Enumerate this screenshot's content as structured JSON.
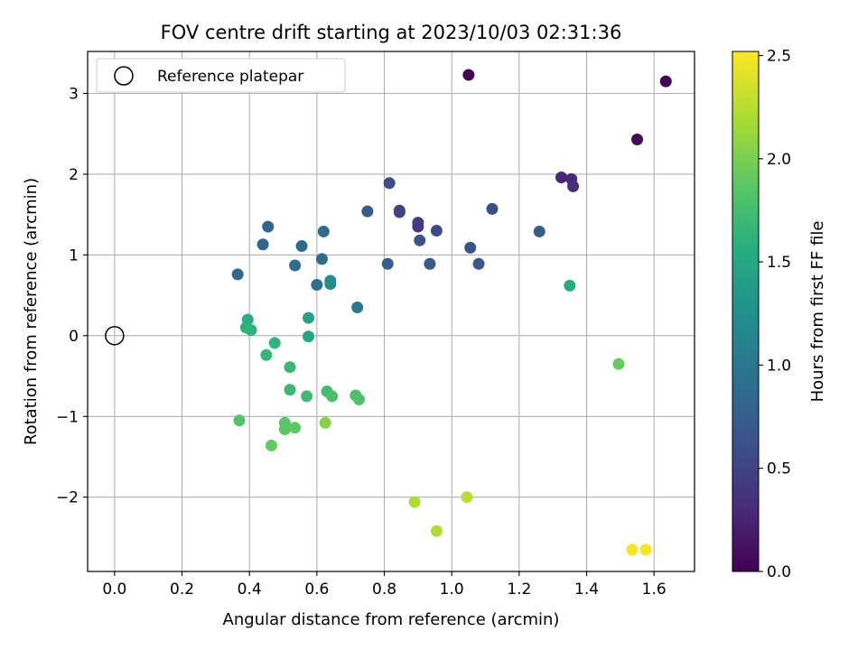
{
  "chart_data": {
    "type": "scatter",
    "title": "FOV centre drift starting at 2023/10/03 02:31:36",
    "xlabel": "Angular distance from reference (arcmin)",
    "ylabel": "Rotation from reference (arcmin)",
    "xlim": [
      -0.08,
      1.72
    ],
    "ylim": [
      -2.92,
      3.52
    ],
    "xticks": [
      0.0,
      0.2,
      0.4,
      0.6,
      0.8,
      1.0,
      1.2,
      1.4,
      1.6
    ],
    "xtick_labels": [
      "0.0",
      "0.2",
      "0.4",
      "0.6",
      "0.8",
      "1.0",
      "1.2",
      "1.4",
      "1.6"
    ],
    "yticks": [
      -2,
      -1,
      0,
      1,
      2,
      3
    ],
    "ytick_labels": [
      "−2",
      "−1",
      "0",
      "1",
      "2",
      "3"
    ],
    "grid": true,
    "legend": {
      "position": "top-left",
      "entries": [
        "Reference platepar"
      ]
    },
    "reference_point": {
      "x": 0.0,
      "y": 0.0
    },
    "colorbar": {
      "label": "Hours from first FF file",
      "range": [
        0.0,
        2.52
      ],
      "ticks": [
        0.0,
        0.5,
        1.0,
        1.5,
        2.0,
        2.5
      ],
      "tick_labels": [
        "0.0",
        "0.5",
        "1.0",
        "1.5",
        "2.0",
        "2.5"
      ],
      "colormap": "viridis"
    },
    "points": [
      {
        "x": 1.05,
        "y": 3.23,
        "c": 0.0
      },
      {
        "x": 1.635,
        "y": 3.15,
        "c": 0.02
      },
      {
        "x": 1.55,
        "y": 2.43,
        "c": 0.06
      },
      {
        "x": 1.325,
        "y": 1.96,
        "c": 0.28
      },
      {
        "x": 1.355,
        "y": 1.94,
        "c": 0.3
      },
      {
        "x": 1.36,
        "y": 1.85,
        "c": 0.34
      },
      {
        "x": 0.9,
        "y": 1.35,
        "c": 0.42
      },
      {
        "x": 0.9,
        "y": 1.4,
        "c": 0.45
      },
      {
        "x": 0.845,
        "y": 1.55,
        "c": 0.48
      },
      {
        "x": 0.845,
        "y": 1.53,
        "c": 0.52
      },
      {
        "x": 0.955,
        "y": 1.3,
        "c": 0.58
      },
      {
        "x": 0.815,
        "y": 1.89,
        "c": 0.6
      },
      {
        "x": 1.12,
        "y": 1.57,
        "c": 0.62
      },
      {
        "x": 1.055,
        "y": 1.09,
        "c": 0.64
      },
      {
        "x": 0.905,
        "y": 1.18,
        "c": 0.66
      },
      {
        "x": 1.08,
        "y": 0.89,
        "c": 0.68
      },
      {
        "x": 0.935,
        "y": 0.89,
        "c": 0.7
      },
      {
        "x": 0.75,
        "y": 1.54,
        "c": 0.72
      },
      {
        "x": 1.26,
        "y": 1.29,
        "c": 0.74
      },
      {
        "x": 0.81,
        "y": 0.89,
        "c": 0.78
      },
      {
        "x": 0.455,
        "y": 1.35,
        "c": 0.82
      },
      {
        "x": 0.44,
        "y": 1.13,
        "c": 0.84
      },
      {
        "x": 0.365,
        "y": 0.76,
        "c": 0.86
      },
      {
        "x": 0.555,
        "y": 1.11,
        "c": 0.88
      },
      {
        "x": 0.615,
        "y": 0.95,
        "c": 0.88
      },
      {
        "x": 0.535,
        "y": 0.87,
        "c": 0.9
      },
      {
        "x": 0.62,
        "y": 1.29,
        "c": 0.9
      },
      {
        "x": 0.6,
        "y": 0.63,
        "c": 0.92
      },
      {
        "x": 0.72,
        "y": 0.35,
        "c": 1.02
      },
      {
        "x": 0.64,
        "y": 0.64,
        "c": 1.2
      },
      {
        "x": 0.64,
        "y": 0.68,
        "c": 1.25
      },
      {
        "x": 0.575,
        "y": 0.22,
        "c": 1.45
      },
      {
        "x": 0.575,
        "y": -0.01,
        "c": 1.5
      },
      {
        "x": 1.35,
        "y": 0.62,
        "c": 1.55
      },
      {
        "x": 0.395,
        "y": 0.2,
        "c": 1.58
      },
      {
        "x": 0.39,
        "y": 0.1,
        "c": 1.6
      },
      {
        "x": 0.405,
        "y": 0.07,
        "c": 1.62
      },
      {
        "x": 0.475,
        "y": -0.09,
        "c": 1.64
      },
      {
        "x": 0.45,
        "y": -0.24,
        "c": 1.66
      },
      {
        "x": 0.52,
        "y": -0.39,
        "c": 1.68
      },
      {
        "x": 0.52,
        "y": -0.67,
        "c": 1.7
      },
      {
        "x": 0.57,
        "y": -0.75,
        "c": 1.72
      },
      {
        "x": 0.63,
        "y": -0.69,
        "c": 1.74
      },
      {
        "x": 0.645,
        "y": -0.75,
        "c": 1.76
      },
      {
        "x": 0.715,
        "y": -0.74,
        "c": 1.78
      },
      {
        "x": 0.725,
        "y": -0.79,
        "c": 1.8
      },
      {
        "x": 0.37,
        "y": -1.05,
        "c": 1.82
      },
      {
        "x": 0.505,
        "y": -1.08,
        "c": 1.84
      },
      {
        "x": 0.505,
        "y": -1.16,
        "c": 1.86
      },
      {
        "x": 0.535,
        "y": -1.14,
        "c": 1.88
      },
      {
        "x": 0.465,
        "y": -1.36,
        "c": 1.9
      },
      {
        "x": 1.495,
        "y": -0.35,
        "c": 1.92
      },
      {
        "x": 0.625,
        "y": -1.08,
        "c": 2.05
      },
      {
        "x": 0.89,
        "y": -2.06,
        "c": 2.2
      },
      {
        "x": 0.955,
        "y": -2.42,
        "c": 2.22
      },
      {
        "x": 1.045,
        "y": -2.0,
        "c": 2.24
      },
      {
        "x": 1.535,
        "y": -2.65,
        "c": 2.48
      },
      {
        "x": 1.575,
        "y": -2.65,
        "c": 2.5
      }
    ]
  }
}
